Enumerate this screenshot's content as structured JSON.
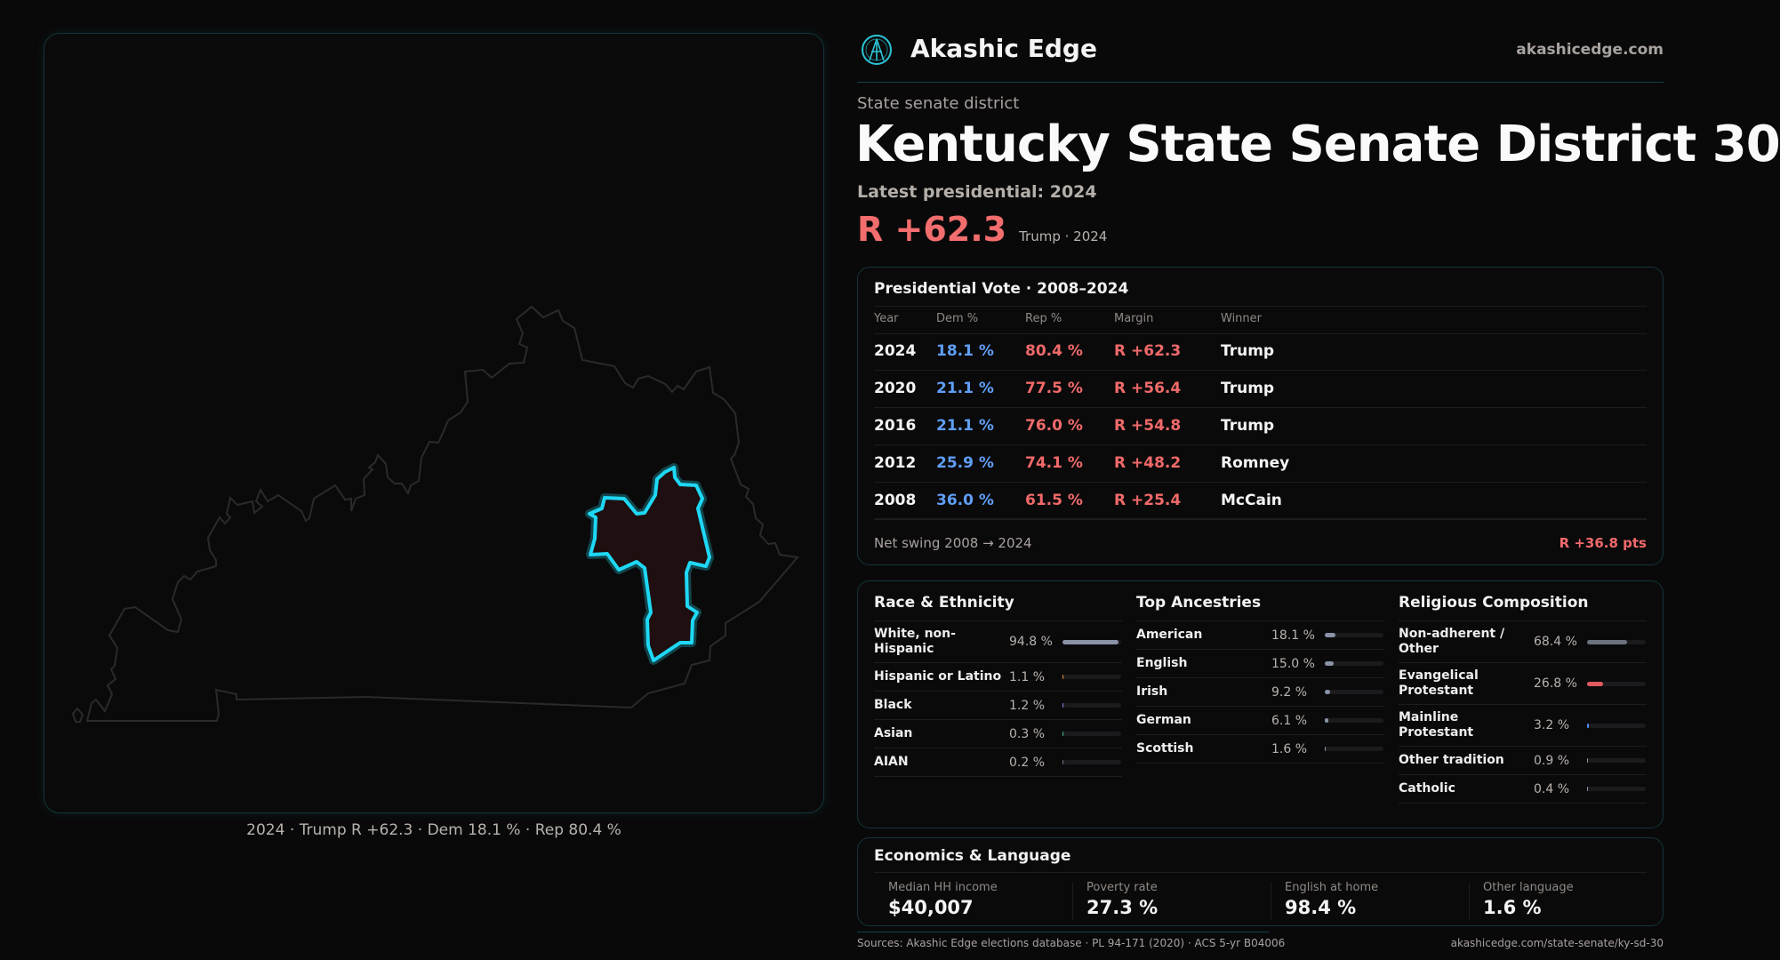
{
  "brand": {
    "name": "Akashic Edge",
    "site": "akashicedge.com",
    "logo_icon": "akashic-logo-icon"
  },
  "kicker": "State senate district",
  "title": "Kentucky State Senate District 30",
  "latest": "Latest presidential: 2024",
  "headline_margin": "R +62.3",
  "headline_sub": "Trump · 2024",
  "map": {
    "caption": "2024 · Trump R +62.3 · Dem 18.1 % · Rep 80.4 %",
    "highlight_color": "#1ed8f5",
    "fill_color": "#1f0f10"
  },
  "colors": {
    "dem": "#5f9ff6",
    "rep": "#f06a6a",
    "accent": "#12353a"
  },
  "presidential": {
    "title": "Presidential Vote · 2008–2024",
    "headers": [
      "Year",
      "Dem %",
      "Rep %",
      "Margin",
      "Winner"
    ],
    "rows": [
      [
        "2024",
        "18.1 %",
        "80.4 %",
        "R +62.3",
        "Trump"
      ],
      [
        "2020",
        "21.1 %",
        "77.5 %",
        "R +56.4",
        "Trump"
      ],
      [
        "2016",
        "21.1 %",
        "76.0 %",
        "R +54.8",
        "Trump"
      ],
      [
        "2012",
        "25.9 %",
        "74.1 %",
        "R +48.2",
        "Romney"
      ],
      [
        "2008",
        "36.0 %",
        "61.5 %",
        "R +25.4",
        "McCain"
      ]
    ],
    "swing_label": "Net swing 2008 → 2024",
    "swing_value": "R +36.8 pts"
  },
  "demographics": [
    {
      "title": "Race & Ethnicity",
      "items": [
        {
          "name": "White, non-Hispanic",
          "value": "94.8 %",
          "pct": 94.8,
          "color": "#8a93a6"
        },
        {
          "name": "Hispanic or Latino",
          "value": "1.1 %",
          "pct": 1.1,
          "color": "#e08a2a"
        },
        {
          "name": "Black",
          "value": "1.2 %",
          "pct": 1.2,
          "color": "#8a7cf0"
        },
        {
          "name": "Asian",
          "value": "0.3 %",
          "pct": 0.3,
          "color": "#3bbf8a"
        },
        {
          "name": "AIAN",
          "value": "0.2 %",
          "pct": 0.2,
          "color": "#6b7280"
        }
      ]
    },
    {
      "title": "Top Ancestries",
      "items": [
        {
          "name": "American",
          "value": "18.1 %",
          "pct": 18.1,
          "color": "#8a93a6"
        },
        {
          "name": "English",
          "value": "15.0 %",
          "pct": 15.0,
          "color": "#8a93a6"
        },
        {
          "name": "Irish",
          "value": "9.2 %",
          "pct": 9.2,
          "color": "#8a93a6"
        },
        {
          "name": "German",
          "value": "6.1 %",
          "pct": 6.1,
          "color": "#8a93a6"
        },
        {
          "name": "Scottish",
          "value": "1.6 %",
          "pct": 1.6,
          "color": "#8a93a6"
        }
      ]
    },
    {
      "title": "Religious Composition",
      "items": [
        {
          "name": "Non-adherent / Other",
          "value": "68.4 %",
          "pct": 68.4,
          "color": "#6b7280"
        },
        {
          "name": "Evangelical Protestant",
          "value": "26.8 %",
          "pct": 26.8,
          "color": "#e05a5f"
        },
        {
          "name": "Mainline Protestant",
          "value": "3.2 %",
          "pct": 3.2,
          "color": "#4a8ef0"
        },
        {
          "name": "Other tradition",
          "value": "0.9 %",
          "pct": 0.9,
          "color": "#8a93a6"
        },
        {
          "name": "Catholic",
          "value": "0.4 %",
          "pct": 0.4,
          "color": "#8a93a6"
        }
      ]
    }
  ],
  "economics": {
    "title": "Economics & Language",
    "stats": [
      {
        "label": "Median HH income",
        "value": "$40,007"
      },
      {
        "label": "Poverty rate",
        "value": "27.3 %"
      },
      {
        "label": "English at home",
        "value": "98.4 %"
      },
      {
        "label": "Other language",
        "value": "1.6 %"
      }
    ]
  },
  "sources": {
    "line1": "Sources: Akashic Edge elections database · PL 94-171 (2020) · ACS 5-yr B04006",
    "line2": "akashicedge.com/state-senate/ky-sd-30"
  }
}
